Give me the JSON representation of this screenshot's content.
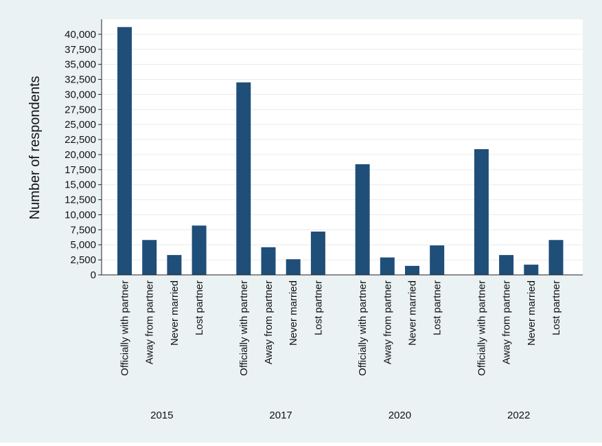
{
  "chart_data": {
    "type": "bar",
    "ylabel": "Number of respondents",
    "ylim": [
      0,
      42500
    ],
    "yticks": [
      0,
      2500,
      5000,
      7500,
      10000,
      12500,
      15000,
      17500,
      20000,
      22500,
      25000,
      27500,
      30000,
      32500,
      35000,
      37500,
      40000
    ],
    "ytick_labels": [
      "0",
      "2,500",
      "5,000",
      "7,500",
      "10,000",
      "12,500",
      "15,000",
      "17,500",
      "20,000",
      "22,500",
      "25,000",
      "27,500",
      "30,000",
      "32,500",
      "35,000",
      "37,500",
      "40,000"
    ],
    "grid": true,
    "bar_color": "#1f4e79",
    "groups": [
      {
        "label": "2015",
        "categories": [
          "Officially with partner",
          "Away from partner",
          "Never married",
          "Lost partner"
        ],
        "values": [
          41200,
          5800,
          3300,
          8200
        ]
      },
      {
        "label": "2017",
        "categories": [
          "Officially with partner",
          "Away from partner",
          "Never married",
          "Lost partner"
        ],
        "values": [
          32000,
          4600,
          2600,
          7200
        ]
      },
      {
        "label": "2020",
        "categories": [
          "Officially with partner",
          "Away from partner",
          "Never married",
          "Lost partner"
        ],
        "values": [
          18400,
          2900,
          1500,
          4900
        ]
      },
      {
        "label": "2022",
        "categories": [
          "Officially with partner",
          "Away from partner",
          "Never married",
          "Lost partner"
        ],
        "values": [
          20900,
          3300,
          1700,
          5800
        ]
      }
    ]
  }
}
